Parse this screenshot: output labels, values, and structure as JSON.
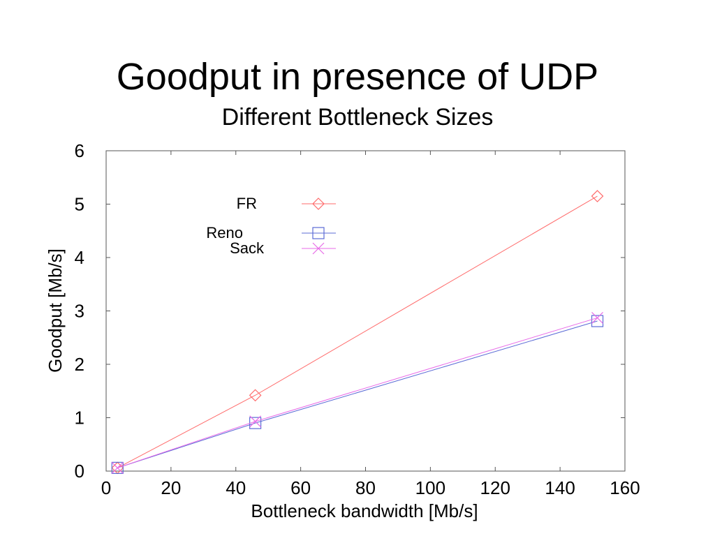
{
  "chart_data": {
    "type": "line",
    "title": "Goodput in presence of UDP",
    "subtitle": "Different Bottleneck Sizes",
    "xlabel": "Bottleneck bandwidth [Mb/s]",
    "ylabel": "Goodput [Mb/s]",
    "xlim": [
      0,
      160
    ],
    "ylim": [
      0,
      6
    ],
    "xticks": [
      "0",
      "20",
      "40",
      "60",
      "80",
      "100",
      "120",
      "140",
      "160"
    ],
    "yticks": [
      "0",
      "1",
      "2",
      "3",
      "4",
      "5",
      "6"
    ],
    "grid": false,
    "legend_position": "top-left",
    "series": [
      {
        "name": "FR",
        "color": "#ff6b6b",
        "marker": "diamond",
        "x": [
          3.5,
          46,
          151.5
        ],
        "y": [
          0.06,
          1.42,
          5.15
        ]
      },
      {
        "name": "Reno",
        "color": "#5b6bd6",
        "marker": "square",
        "x": [
          3.5,
          46,
          151.5
        ],
        "y": [
          0.06,
          0.9,
          2.81
        ]
      },
      {
        "name": "Sack",
        "color": "#e86be8",
        "marker": "cross",
        "x": [
          3.5,
          46,
          151.5
        ],
        "y": [
          0.06,
          0.93,
          2.87
        ]
      }
    ]
  }
}
